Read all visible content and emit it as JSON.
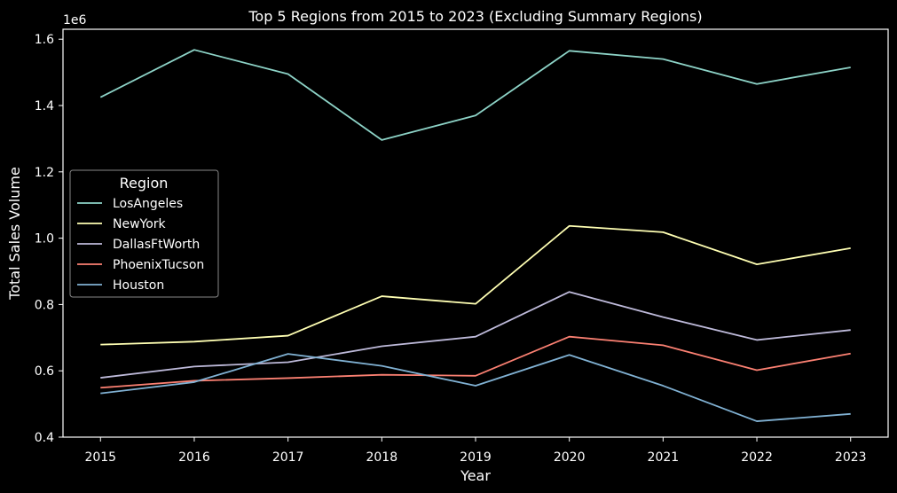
{
  "chart_data": {
    "type": "line",
    "title": "Top 5 Regions from 2015 to 2023 (Excluding Summary Regions)",
    "xlabel": "Year",
    "ylabel": "Total Sales Volume",
    "y_offset_label": "1e6",
    "x": [
      2015,
      2016,
      2017,
      2018,
      2019,
      2020,
      2021,
      2022,
      2023
    ],
    "xticks": [
      "2015",
      "2016",
      "2017",
      "2018",
      "2019",
      "2020",
      "2021",
      "2022",
      "2023"
    ],
    "xlim": [
      2014.6,
      2023.4
    ],
    "yticks": [
      0.4,
      0.6,
      0.8,
      1.0,
      1.2,
      1.4,
      1.6
    ],
    "ytick_labels": [
      "0.4",
      "0.6",
      "0.8",
      "1.0",
      "1.2",
      "1.4",
      "1.6"
    ],
    "ylim": [
      0.4,
      1.63
    ],
    "y_units_scale": 1000000,
    "grid": false,
    "legend": {
      "title": "Region",
      "placement": "center-left"
    },
    "series": [
      {
        "name": "LosAngeles",
        "color": "#8dd3c7",
        "values": [
          1.425,
          1.568,
          1.495,
          1.296,
          1.37,
          1.565,
          1.54,
          1.465,
          1.515
        ]
      },
      {
        "name": "NewYork",
        "color": "#ffffb3",
        "values": [
          0.679,
          0.688,
          0.706,
          0.825,
          0.802,
          1.037,
          1.018,
          0.921,
          0.97
        ]
      },
      {
        "name": "DallasFtWorth",
        "color": "#bebada",
        "values": [
          0.579,
          0.613,
          0.626,
          0.674,
          0.703,
          0.838,
          0.762,
          0.693,
          0.723
        ]
      },
      {
        "name": "PhoenixTucson",
        "color": "#fb8072",
        "values": [
          0.549,
          0.57,
          0.578,
          0.588,
          0.585,
          0.703,
          0.677,
          0.602,
          0.652
        ]
      },
      {
        "name": "Houston",
        "color": "#80b1d3",
        "values": [
          0.532,
          0.566,
          0.651,
          0.615,
          0.555,
          0.648,
          0.555,
          0.448,
          0.47
        ]
      }
    ]
  }
}
